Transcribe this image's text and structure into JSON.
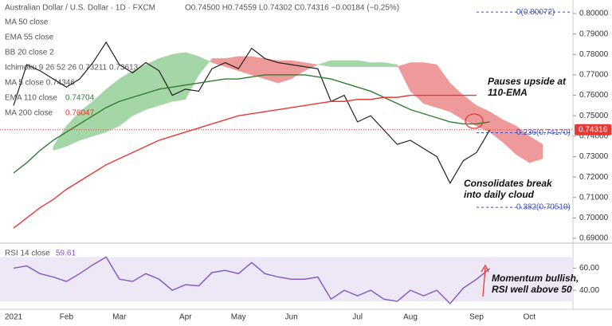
{
  "header": {
    "title": "Australian Dollar / U.S. Dollar · 1D · FXCM",
    "ohlc": "O0.74500 H0.74559 L0.74302 C0.74316 −0.00184 (−0.25%)",
    "indicators": [
      "MA 50 close",
      "EMA 55 close",
      "BB 20 close 2",
      "Ichimoku 9 26 52 26  0.73211  0.73613",
      "MA 5 close  0.74346"
    ]
  },
  "chart_data": [
    {
      "type": "line",
      "categories": [
        "2021",
        null,
        null,
        null,
        "Feb",
        null,
        null,
        null,
        "Mar",
        null,
        null,
        null,
        null,
        "Apr",
        null,
        null,
        null,
        "May",
        null,
        null,
        null,
        "Jun",
        null,
        null,
        null,
        null,
        "Jul",
        null,
        null,
        null,
        "Aug",
        null,
        null,
        null,
        null,
        "Sep",
        null,
        null,
        null,
        "Oct",
        null,
        null,
        null
      ],
      "ylim": [
        0.685,
        0.805
      ],
      "yticks": [
        {
          "value": 0.69,
          "label": "0.69000"
        },
        {
          "value": 0.7,
          "label": "0.70000"
        },
        {
          "value": 0.71,
          "label": "0.71000"
        },
        {
          "value": 0.72,
          "label": "0.72000"
        },
        {
          "value": 0.73,
          "label": "0.73000"
        },
        {
          "value": 0.74,
          "label": "0.74000"
        },
        {
          "value": 0.75,
          "label": "0.75000"
        },
        {
          "value": 0.76,
          "label": "0.76000"
        },
        {
          "value": 0.77,
          "label": "0.77000"
        },
        {
          "value": 0.78,
          "label": "0.78000"
        },
        {
          "value": 0.79,
          "label": "0.79000"
        },
        {
          "value": 0.8,
          "label": "0.80000"
        }
      ],
      "series": [
        {
          "name": "close",
          "color": "#222222",
          "values": [
            0.755,
            0.775,
            0.772,
            0.768,
            0.764,
            0.768,
            0.776,
            0.786,
            0.775,
            0.771,
            0.776,
            0.772,
            0.76,
            0.763,
            0.762,
            0.773,
            0.776,
            0.773,
            0.783,
            0.778,
            0.776,
            0.775,
            0.774,
            0.773,
            0.757,
            0.76,
            0.747,
            0.75,
            0.743,
            0.736,
            0.738,
            0.734,
            0.73,
            0.717,
            0.728,
            0.732,
            0.743,
            null,
            null,
            null,
            null,
            null,
            null
          ]
        },
        {
          "name": "EMA 110 close",
          "color": "#2e7d32",
          "values": [
            0.722,
            0.727,
            0.733,
            0.738,
            0.742,
            0.746,
            0.75,
            0.754,
            0.757,
            0.759,
            0.761,
            0.763,
            0.764,
            0.765,
            0.766,
            0.767,
            0.768,
            0.768,
            0.769,
            0.77,
            0.77,
            0.77,
            0.77,
            0.769,
            0.768,
            0.766,
            0.764,
            0.762,
            0.759,
            0.756,
            0.753,
            0.751,
            0.749,
            0.747,
            0.746,
            0.746,
            0.747,
            null,
            null,
            null,
            null,
            null,
            null
          ]
        },
        {
          "name": "MA 200 close",
          "color": "#e53935",
          "values": [
            0.695,
            0.7,
            0.705,
            0.709,
            0.714,
            0.718,
            0.722,
            0.726,
            0.729,
            0.732,
            0.735,
            0.738,
            0.74,
            0.742,
            0.744,
            0.746,
            0.748,
            0.75,
            0.751,
            0.752,
            0.753,
            0.754,
            0.755,
            0.756,
            0.757,
            0.757,
            0.758,
            0.758,
            0.759,
            0.759,
            0.76,
            0.76,
            0.76,
            0.76,
            0.76,
            0.76,
            null,
            null,
            null,
            null,
            null,
            null,
            null
          ]
        }
      ],
      "legend_values": [
        "0.74704",
        "0.76047"
      ],
      "cloud": {
        "bull_color": "#a5d6a7",
        "bear_color": "#ef9a9a",
        "span_a": [
          null,
          null,
          null,
          0.735,
          0.745,
          0.752,
          0.757,
          0.763,
          0.768,
          0.772,
          0.775,
          0.778,
          0.78,
          0.781,
          0.779,
          0.776,
          0.774,
          0.772,
          0.77,
          0.768,
          0.766,
          0.768,
          0.772,
          0.775,
          0.777,
          0.777,
          0.777,
          0.776,
          0.776,
          0.775,
          0.762,
          0.756,
          0.754,
          0.752,
          0.748,
          0.745,
          0.742,
          0.737,
          0.731,
          0.727,
          0.729,
          null,
          null
        ],
        "span_b": [
          null,
          null,
          null,
          0.733,
          0.735,
          0.738,
          0.74,
          0.742,
          0.745,
          0.75,
          0.753,
          0.755,
          0.757,
          0.758,
          0.77,
          0.778,
          0.778,
          0.779,
          0.779,
          0.778,
          0.777,
          0.777,
          0.776,
          0.775,
          0.774,
          0.774,
          0.774,
          0.774,
          0.774,
          0.774,
          0.776,
          0.776,
          0.775,
          0.766,
          0.76,
          0.755,
          0.752,
          0.748,
          0.745,
          0.74,
          0.736,
          null,
          null
        ]
      },
      "last_price": 0.74316,
      "levels": [
        {
          "value": 0.80072,
          "label": "0(0.80072)"
        },
        {
          "value": 0.7417,
          "label": "0.236(0.74170)"
        },
        {
          "value": 0.70519,
          "label": "0.382(0.70519)"
        }
      ],
      "annotations": [
        [
          "Pauses upside at",
          "110-EMA"
        ],
        [
          "Consolidates break",
          "into daily cloud"
        ]
      ]
    },
    {
      "type": "line",
      "ylim": [
        25,
        79
      ],
      "yticks": [
        {
          "value": 40,
          "label": "40.00"
        },
        {
          "value": 60,
          "label": "60.00"
        }
      ],
      "band": [
        30,
        70
      ],
      "band_color": "#ede7f6",
      "series": [
        {
          "name": "RSI 14 close",
          "color": "#7e57c2",
          "values": [
            60,
            62,
            55,
            52,
            48,
            55,
            63,
            70,
            50,
            48,
            55,
            50,
            40,
            45,
            44,
            56,
            58,
            55,
            65,
            55,
            52,
            50,
            50,
            52,
            32,
            40,
            35,
            40,
            32,
            30,
            40,
            35,
            40,
            28,
            42,
            50,
            59.61,
            null,
            null,
            null,
            null,
            null,
            null
          ]
        }
      ],
      "annotations": [
        [
          "Momentum bullish,",
          "RSI well above 50"
        ]
      ]
    }
  ]
}
